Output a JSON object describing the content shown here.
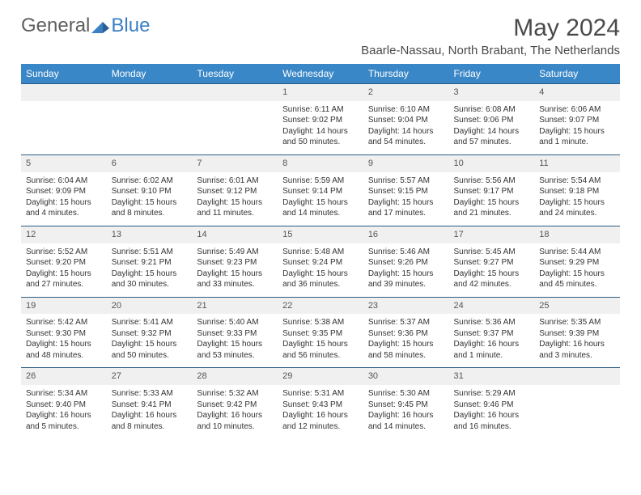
{
  "header": {
    "logo_prefix": "General",
    "logo_suffix": "Blue",
    "month_title": "May 2024",
    "location": "Baarle-Nassau, North Brabant, The Netherlands"
  },
  "colors": {
    "header_bg": "#3a87c7",
    "header_text": "#ffffff",
    "daynum_bg": "#f0f0f0",
    "border_top": "#2b5d86",
    "logo_gray": "#5f5f5f",
    "logo_blue": "#3a7fc4"
  },
  "day_labels": [
    "Sunday",
    "Monday",
    "Tuesday",
    "Wednesday",
    "Thursday",
    "Friday",
    "Saturday"
  ],
  "weeks": [
    {
      "nums": [
        "",
        "",
        "",
        "1",
        "2",
        "3",
        "4"
      ],
      "cells": [
        {
          "sunrise": "",
          "sunset": "",
          "daylight": ""
        },
        {
          "sunrise": "",
          "sunset": "",
          "daylight": ""
        },
        {
          "sunrise": "",
          "sunset": "",
          "daylight": ""
        },
        {
          "sunrise": "Sunrise: 6:11 AM",
          "sunset": "Sunset: 9:02 PM",
          "daylight": "Daylight: 14 hours and 50 minutes."
        },
        {
          "sunrise": "Sunrise: 6:10 AM",
          "sunset": "Sunset: 9:04 PM",
          "daylight": "Daylight: 14 hours and 54 minutes."
        },
        {
          "sunrise": "Sunrise: 6:08 AM",
          "sunset": "Sunset: 9:06 PM",
          "daylight": "Daylight: 14 hours and 57 minutes."
        },
        {
          "sunrise": "Sunrise: 6:06 AM",
          "sunset": "Sunset: 9:07 PM",
          "daylight": "Daylight: 15 hours and 1 minute."
        }
      ]
    },
    {
      "nums": [
        "5",
        "6",
        "7",
        "8",
        "9",
        "10",
        "11"
      ],
      "cells": [
        {
          "sunrise": "Sunrise: 6:04 AM",
          "sunset": "Sunset: 9:09 PM",
          "daylight": "Daylight: 15 hours and 4 minutes."
        },
        {
          "sunrise": "Sunrise: 6:02 AM",
          "sunset": "Sunset: 9:10 PM",
          "daylight": "Daylight: 15 hours and 8 minutes."
        },
        {
          "sunrise": "Sunrise: 6:01 AM",
          "sunset": "Sunset: 9:12 PM",
          "daylight": "Daylight: 15 hours and 11 minutes."
        },
        {
          "sunrise": "Sunrise: 5:59 AM",
          "sunset": "Sunset: 9:14 PM",
          "daylight": "Daylight: 15 hours and 14 minutes."
        },
        {
          "sunrise": "Sunrise: 5:57 AM",
          "sunset": "Sunset: 9:15 PM",
          "daylight": "Daylight: 15 hours and 17 minutes."
        },
        {
          "sunrise": "Sunrise: 5:56 AM",
          "sunset": "Sunset: 9:17 PM",
          "daylight": "Daylight: 15 hours and 21 minutes."
        },
        {
          "sunrise": "Sunrise: 5:54 AM",
          "sunset": "Sunset: 9:18 PM",
          "daylight": "Daylight: 15 hours and 24 minutes."
        }
      ]
    },
    {
      "nums": [
        "12",
        "13",
        "14",
        "15",
        "16",
        "17",
        "18"
      ],
      "cells": [
        {
          "sunrise": "Sunrise: 5:52 AM",
          "sunset": "Sunset: 9:20 PM",
          "daylight": "Daylight: 15 hours and 27 minutes."
        },
        {
          "sunrise": "Sunrise: 5:51 AM",
          "sunset": "Sunset: 9:21 PM",
          "daylight": "Daylight: 15 hours and 30 minutes."
        },
        {
          "sunrise": "Sunrise: 5:49 AM",
          "sunset": "Sunset: 9:23 PM",
          "daylight": "Daylight: 15 hours and 33 minutes."
        },
        {
          "sunrise": "Sunrise: 5:48 AM",
          "sunset": "Sunset: 9:24 PM",
          "daylight": "Daylight: 15 hours and 36 minutes."
        },
        {
          "sunrise": "Sunrise: 5:46 AM",
          "sunset": "Sunset: 9:26 PM",
          "daylight": "Daylight: 15 hours and 39 minutes."
        },
        {
          "sunrise": "Sunrise: 5:45 AM",
          "sunset": "Sunset: 9:27 PM",
          "daylight": "Daylight: 15 hours and 42 minutes."
        },
        {
          "sunrise": "Sunrise: 5:44 AM",
          "sunset": "Sunset: 9:29 PM",
          "daylight": "Daylight: 15 hours and 45 minutes."
        }
      ]
    },
    {
      "nums": [
        "19",
        "20",
        "21",
        "22",
        "23",
        "24",
        "25"
      ],
      "cells": [
        {
          "sunrise": "Sunrise: 5:42 AM",
          "sunset": "Sunset: 9:30 PM",
          "daylight": "Daylight: 15 hours and 48 minutes."
        },
        {
          "sunrise": "Sunrise: 5:41 AM",
          "sunset": "Sunset: 9:32 PM",
          "daylight": "Daylight: 15 hours and 50 minutes."
        },
        {
          "sunrise": "Sunrise: 5:40 AM",
          "sunset": "Sunset: 9:33 PM",
          "daylight": "Daylight: 15 hours and 53 minutes."
        },
        {
          "sunrise": "Sunrise: 5:38 AM",
          "sunset": "Sunset: 9:35 PM",
          "daylight": "Daylight: 15 hours and 56 minutes."
        },
        {
          "sunrise": "Sunrise: 5:37 AM",
          "sunset": "Sunset: 9:36 PM",
          "daylight": "Daylight: 15 hours and 58 minutes."
        },
        {
          "sunrise": "Sunrise: 5:36 AM",
          "sunset": "Sunset: 9:37 PM",
          "daylight": "Daylight: 16 hours and 1 minute."
        },
        {
          "sunrise": "Sunrise: 5:35 AM",
          "sunset": "Sunset: 9:39 PM",
          "daylight": "Daylight: 16 hours and 3 minutes."
        }
      ]
    },
    {
      "nums": [
        "26",
        "27",
        "28",
        "29",
        "30",
        "31",
        ""
      ],
      "cells": [
        {
          "sunrise": "Sunrise: 5:34 AM",
          "sunset": "Sunset: 9:40 PM",
          "daylight": "Daylight: 16 hours and 5 minutes."
        },
        {
          "sunrise": "Sunrise: 5:33 AM",
          "sunset": "Sunset: 9:41 PM",
          "daylight": "Daylight: 16 hours and 8 minutes."
        },
        {
          "sunrise": "Sunrise: 5:32 AM",
          "sunset": "Sunset: 9:42 PM",
          "daylight": "Daylight: 16 hours and 10 minutes."
        },
        {
          "sunrise": "Sunrise: 5:31 AM",
          "sunset": "Sunset: 9:43 PM",
          "daylight": "Daylight: 16 hours and 12 minutes."
        },
        {
          "sunrise": "Sunrise: 5:30 AM",
          "sunset": "Sunset: 9:45 PM",
          "daylight": "Daylight: 16 hours and 14 minutes."
        },
        {
          "sunrise": "Sunrise: 5:29 AM",
          "sunset": "Sunset: 9:46 PM",
          "daylight": "Daylight: 16 hours and 16 minutes."
        },
        {
          "sunrise": "",
          "sunset": "",
          "daylight": ""
        }
      ]
    }
  ]
}
